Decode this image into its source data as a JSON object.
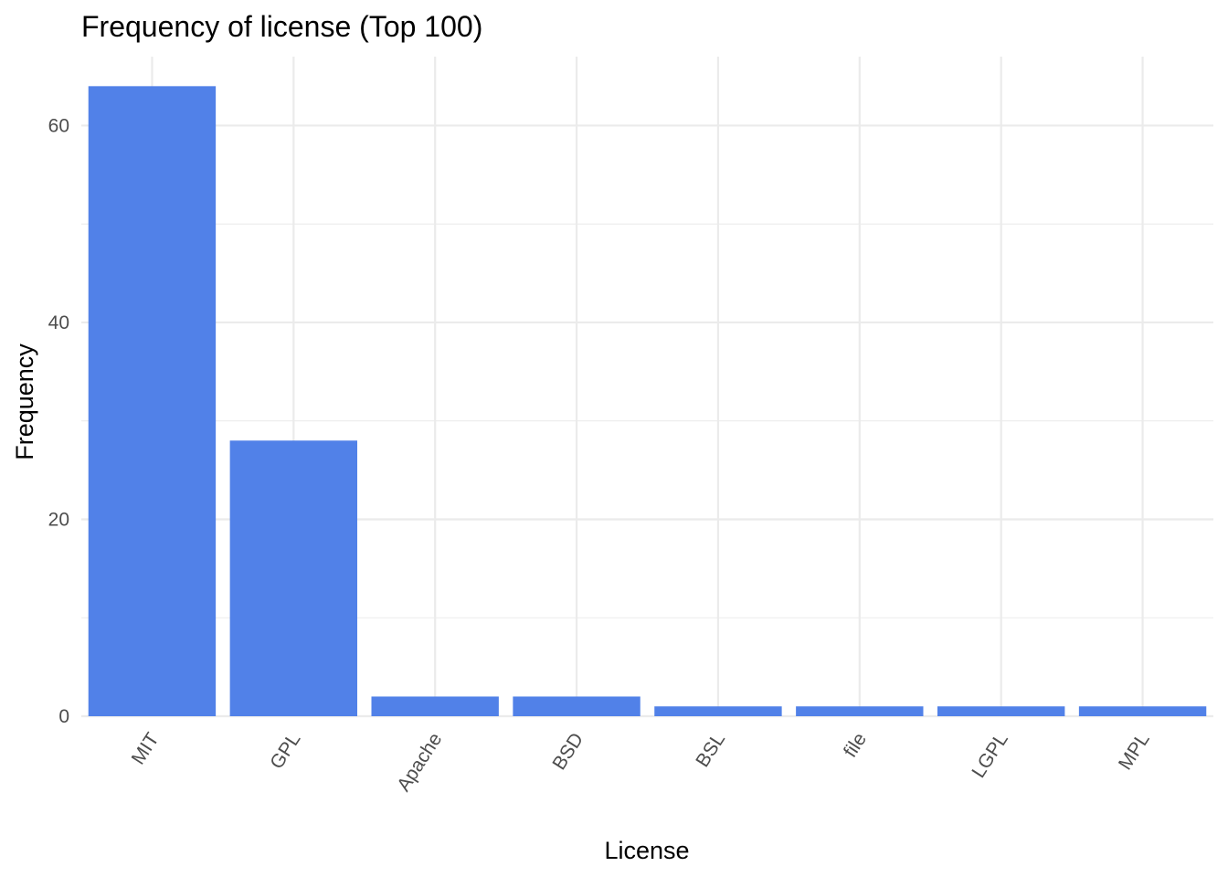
{
  "chart_data": {
    "type": "bar",
    "title": "Frequency of license (Top 100)",
    "xlabel": "License",
    "ylabel": "Frequency",
    "categories": [
      "MIT",
      "GPL",
      "Apache",
      "BSD",
      "BSL",
      "file",
      "LGPL",
      "MPL"
    ],
    "values": [
      64,
      28,
      2,
      2,
      1,
      1,
      1,
      1
    ],
    "ylim": [
      0,
      67
    ],
    "yticks": [
      0,
      20,
      40,
      60
    ],
    "y_minor_ticks": [
      10,
      30,
      50
    ],
    "grid": true,
    "x_tick_rotation": "45-degree",
    "bar_color": "#5181e8",
    "grid_color": "#ebebeb"
  }
}
